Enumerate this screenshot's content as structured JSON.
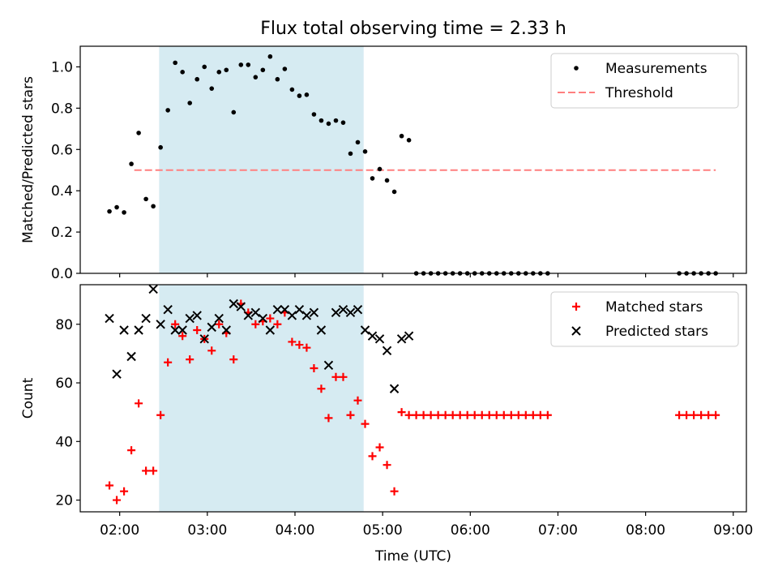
{
  "figure_title": "Flux total observing time = 2.33 h",
  "colors": {
    "measurement": "#000000",
    "threshold": "#ff7f7f",
    "matched": "#ff0000",
    "predicted": "#000000",
    "shade": "#add8e6"
  },
  "chart_data": [
    {
      "type": "scatter",
      "ylabel": "Matched/Predicted stars",
      "xlim": [
        "01:33",
        "09:09"
      ],
      "ylim": [
        0,
        1.1
      ],
      "yticks": [
        0.0,
        0.2,
        0.4,
        0.6,
        0.8,
        1.0
      ],
      "ytick_labels": [
        "0.0",
        "0.2",
        "0.4",
        "0.6",
        "0.8",
        "1.0"
      ],
      "shaded_interval": [
        "02:27",
        "04:47"
      ],
      "legend": {
        "position": "upper right",
        "entries": [
          "Measurements",
          "Threshold"
        ]
      },
      "threshold": {
        "name": "Threshold",
        "y": 0.5,
        "x_start": "02:10",
        "x_end": "08:48"
      },
      "series": [
        {
          "name": "Measurements",
          "marker": "dot",
          "points": [
            [
              "01:53",
              0.3
            ],
            [
              "01:58",
              0.32
            ],
            [
              "02:03",
              0.295
            ],
            [
              "02:08",
              0.53
            ],
            [
              "02:13",
              0.68
            ],
            [
              "02:18",
              0.36
            ],
            [
              "02:23",
              0.325
            ],
            [
              "02:28",
              0.61
            ],
            [
              "02:33",
              0.79
            ],
            [
              "02:38",
              1.02
            ],
            [
              "02:43",
              0.975
            ],
            [
              "02:48",
              0.825
            ],
            [
              "02:53",
              0.94
            ],
            [
              "02:58",
              1.0
            ],
            [
              "03:03",
              0.895
            ],
            [
              "03:08",
              0.975
            ],
            [
              "03:13",
              0.985
            ],
            [
              "03:18",
              0.78
            ],
            [
              "03:23",
              1.01
            ],
            [
              "03:28",
              1.01
            ],
            [
              "03:33",
              0.95
            ],
            [
              "03:38",
              0.985
            ],
            [
              "03:43",
              1.05
            ],
            [
              "03:48",
              0.94
            ],
            [
              "03:53",
              0.99
            ],
            [
              "03:58",
              0.89
            ],
            [
              "04:03",
              0.86
            ],
            [
              "04:08",
              0.865
            ],
            [
              "04:13",
              0.77
            ],
            [
              "04:18",
              0.74
            ],
            [
              "04:23",
              0.725
            ],
            [
              "04:28",
              0.74
            ],
            [
              "04:33",
              0.73
            ],
            [
              "04:38",
              0.58
            ],
            [
              "04:43",
              0.635
            ],
            [
              "04:48",
              0.59
            ],
            [
              "04:53",
              0.46
            ],
            [
              "04:58",
              0.505
            ],
            [
              "05:03",
              0.45
            ],
            [
              "05:08",
              0.395
            ],
            [
              "05:13",
              0.665
            ],
            [
              "05:18",
              0.645
            ],
            [
              "05:23",
              0.0
            ],
            [
              "05:28",
              0.0
            ],
            [
              "05:33",
              0.0
            ],
            [
              "05:38",
              0.0
            ],
            [
              "05:43",
              0.0
            ],
            [
              "05:48",
              0.0
            ],
            [
              "05:53",
              0.0
            ],
            [
              "05:58",
              0.0
            ],
            [
              "06:03",
              0.0
            ],
            [
              "06:08",
              0.0
            ],
            [
              "06:13",
              0.0
            ],
            [
              "06:18",
              0.0
            ],
            [
              "06:23",
              0.0
            ],
            [
              "06:28",
              0.0
            ],
            [
              "06:33",
              0.0
            ],
            [
              "06:38",
              0.0
            ],
            [
              "06:43",
              0.0
            ],
            [
              "06:48",
              0.0
            ],
            [
              "06:53",
              0.0
            ],
            [
              "08:23",
              0.0
            ],
            [
              "08:28",
              0.0
            ],
            [
              "08:33",
              0.0
            ],
            [
              "08:38",
              0.0
            ],
            [
              "08:43",
              0.0
            ],
            [
              "08:48",
              0.0
            ]
          ]
        }
      ]
    },
    {
      "type": "scatter",
      "xlabel": "Time (UTC)",
      "ylabel": "Count",
      "xlim": [
        "01:33",
        "09:09"
      ],
      "ylim": [
        16,
        93.5
      ],
      "yticks": [
        20,
        40,
        60,
        80
      ],
      "ytick_labels": [
        "20",
        "40",
        "60",
        "80"
      ],
      "xticks": [
        "02:00",
        "03:00",
        "04:00",
        "05:00",
        "06:00",
        "07:00",
        "08:00",
        "09:00"
      ],
      "shaded_interval": [
        "02:27",
        "04:47"
      ],
      "legend": {
        "position": "upper right",
        "entries": [
          "Matched stars",
          "Predicted stars"
        ]
      },
      "series": [
        {
          "name": "Matched stars",
          "marker": "plus",
          "points": [
            [
              "01:53",
              25
            ],
            [
              "01:58",
              20
            ],
            [
              "02:03",
              23
            ],
            [
              "02:08",
              37
            ],
            [
              "02:13",
              53
            ],
            [
              "02:18",
              30
            ],
            [
              "02:23",
              30
            ],
            [
              "02:28",
              49
            ],
            [
              "02:33",
              67
            ],
            [
              "02:38",
              80
            ],
            [
              "02:43",
              76
            ],
            [
              "02:48",
              68
            ],
            [
              "02:53",
              78
            ],
            [
              "02:58",
              75
            ],
            [
              "03:03",
              71
            ],
            [
              "03:08",
              80
            ],
            [
              "03:13",
              77
            ],
            [
              "03:18",
              68
            ],
            [
              "03:23",
              87
            ],
            [
              "03:28",
              84
            ],
            [
              "03:33",
              80
            ],
            [
              "03:38",
              81
            ],
            [
              "03:43",
              82
            ],
            [
              "03:48",
              80
            ],
            [
              "03:53",
              84
            ],
            [
              "03:58",
              74
            ],
            [
              "04:03",
              73
            ],
            [
              "04:08",
              72
            ],
            [
              "04:13",
              65
            ],
            [
              "04:18",
              58
            ],
            [
              "04:23",
              48
            ],
            [
              "04:28",
              62
            ],
            [
              "04:33",
              62
            ],
            [
              "04:38",
              49
            ],
            [
              "04:43",
              54
            ],
            [
              "04:48",
              46
            ],
            [
              "04:53",
              35
            ],
            [
              "04:58",
              38
            ],
            [
              "05:03",
              32
            ],
            [
              "05:08",
              23
            ],
            [
              "05:13",
              50
            ],
            [
              "05:18",
              49
            ],
            [
              "05:23",
              49
            ],
            [
              "05:28",
              49
            ],
            [
              "05:33",
              49
            ],
            [
              "05:38",
              49
            ],
            [
              "05:43",
              49
            ],
            [
              "05:48",
              49
            ],
            [
              "05:53",
              49
            ],
            [
              "05:58",
              49
            ],
            [
              "06:03",
              49
            ],
            [
              "06:08",
              49
            ],
            [
              "06:13",
              49
            ],
            [
              "06:18",
              49
            ],
            [
              "06:23",
              49
            ],
            [
              "06:28",
              49
            ],
            [
              "06:33",
              49
            ],
            [
              "06:38",
              49
            ],
            [
              "06:43",
              49
            ],
            [
              "06:48",
              49
            ],
            [
              "06:53",
              49
            ],
            [
              "08:23",
              49
            ],
            [
              "08:28",
              49
            ],
            [
              "08:33",
              49
            ],
            [
              "08:38",
              49
            ],
            [
              "08:43",
              49
            ],
            [
              "08:48",
              49
            ]
          ]
        },
        {
          "name": "Predicted stars",
          "marker": "x",
          "points": [
            [
              "01:53",
              82
            ],
            [
              "01:58",
              63
            ],
            [
              "02:03",
              78
            ],
            [
              "02:08",
              69
            ],
            [
              "02:13",
              78
            ],
            [
              "02:18",
              82
            ],
            [
              "02:23",
              92
            ],
            [
              "02:28",
              80
            ],
            [
              "02:33",
              85
            ],
            [
              "02:38",
              78
            ],
            [
              "02:43",
              78
            ],
            [
              "02:48",
              82
            ],
            [
              "02:53",
              83
            ],
            [
              "02:58",
              75
            ],
            [
              "03:03",
              79
            ],
            [
              "03:08",
              82
            ],
            [
              "03:13",
              78
            ],
            [
              "03:18",
              87
            ],
            [
              "03:23",
              86
            ],
            [
              "03:28",
              83
            ],
            [
              "03:33",
              84
            ],
            [
              "03:38",
              82
            ],
            [
              "03:43",
              78
            ],
            [
              "03:48",
              85
            ],
            [
              "03:53",
              85
            ],
            [
              "03:58",
              83
            ],
            [
              "04:03",
              85
            ],
            [
              "04:08",
              83
            ],
            [
              "04:13",
              84
            ],
            [
              "04:18",
              78
            ],
            [
              "04:23",
              66
            ],
            [
              "04:28",
              84
            ],
            [
              "04:33",
              85
            ],
            [
              "04:38",
              84
            ],
            [
              "04:43",
              85
            ],
            [
              "04:48",
              78
            ],
            [
              "04:53",
              76
            ],
            [
              "04:58",
              75
            ],
            [
              "05:03",
              71
            ],
            [
              "05:08",
              58
            ],
            [
              "05:13",
              75
            ],
            [
              "05:18",
              76
            ]
          ]
        }
      ]
    }
  ]
}
